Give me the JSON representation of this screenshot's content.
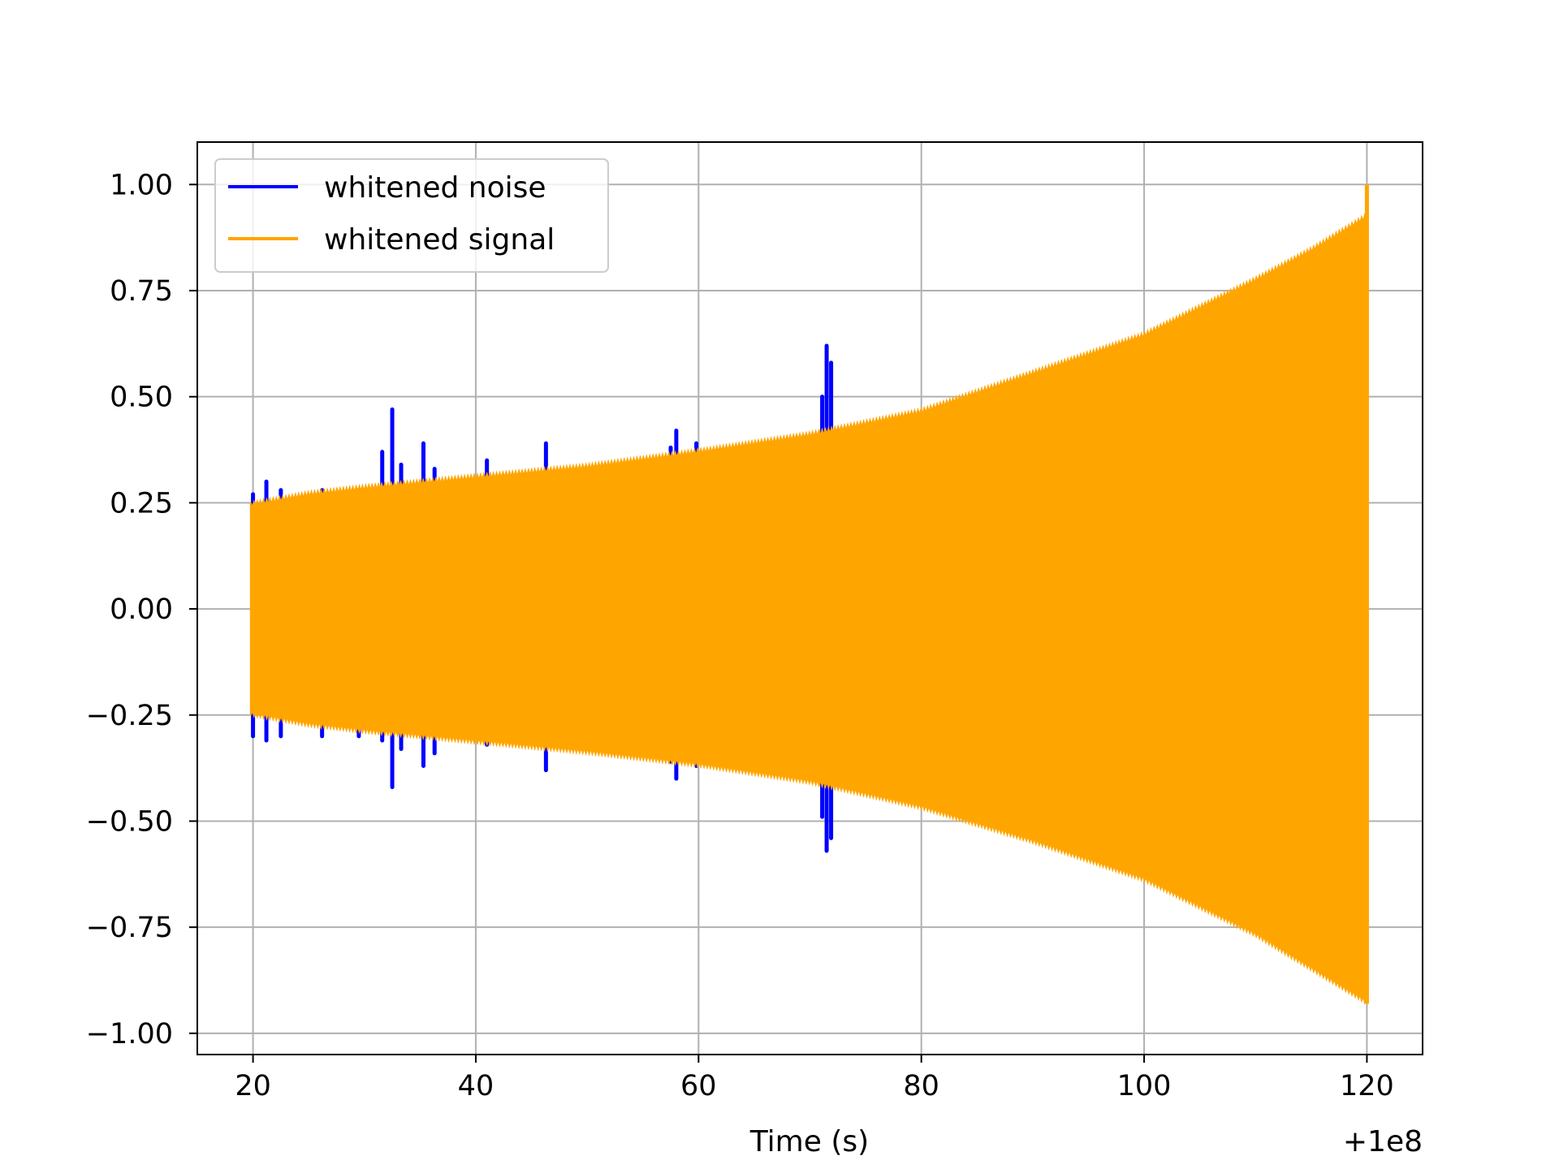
{
  "chart_data": {
    "type": "line",
    "xlabel": "Time (s)",
    "ylabel": "",
    "x_offset_label": "+1e8",
    "xlim": [
      15,
      125
    ],
    "ylim": [
      -1.05,
      1.1
    ],
    "xticks": [
      20,
      40,
      60,
      80,
      100,
      120
    ],
    "xtick_labels": [
      "20",
      "40",
      "60",
      "80",
      "100",
      "120"
    ],
    "yticks": [
      1.0,
      0.75,
      0.5,
      0.25,
      0.0,
      -0.25,
      -0.5,
      -0.75,
      -1.0
    ],
    "ytick_labels": [
      "1.00",
      "0.75",
      "0.50",
      "0.25",
      "0.00",
      "−0.25",
      "−0.50",
      "−0.75",
      "−1.00"
    ],
    "grid": true,
    "legend": "upper-left",
    "series": [
      {
        "name": "whitened noise",
        "color": "#0000ff",
        "spikes": [
          {
            "x": 20.0,
            "upper": 0.27,
            "lower": -0.3
          },
          {
            "x": 21.2,
            "upper": 0.3,
            "lower": -0.31
          },
          {
            "x": 22.5,
            "upper": 0.28,
            "lower": -0.3
          },
          {
            "x": 26.2,
            "upper": 0.28,
            "lower": -0.3
          },
          {
            "x": 29.5,
            "upper": 0.28,
            "lower": -0.3
          },
          {
            "x": 31.6,
            "upper": 0.37,
            "lower": -0.31
          },
          {
            "x": 32.5,
            "upper": 0.47,
            "lower": -0.42
          },
          {
            "x": 33.3,
            "upper": 0.34,
            "lower": -0.33
          },
          {
            "x": 35.3,
            "upper": 0.39,
            "lower": -0.37
          },
          {
            "x": 36.3,
            "upper": 0.33,
            "lower": -0.34
          },
          {
            "x": 41.0,
            "upper": 0.35,
            "lower": -0.32
          },
          {
            "x": 46.3,
            "upper": 0.39,
            "lower": -0.38
          },
          {
            "x": 57.5,
            "upper": 0.38,
            "lower": -0.36
          },
          {
            "x": 58.0,
            "upper": 0.42,
            "lower": -0.4
          },
          {
            "x": 59.8,
            "upper": 0.39,
            "lower": -0.37
          },
          {
            "x": 71.1,
            "upper": 0.5,
            "lower": -0.49
          },
          {
            "x": 71.5,
            "upper": 0.62,
            "lower": -0.57
          },
          {
            "x": 71.9,
            "upper": 0.58,
            "lower": -0.54
          }
        ]
      },
      {
        "name": "whitened signal",
        "color": "#ffa500",
        "x_range": [
          19.8,
          120.1
        ],
        "envelope_upper": [
          [
            19.8,
            0.25
          ],
          [
            25,
            0.275
          ],
          [
            30,
            0.29
          ],
          [
            40,
            0.315
          ],
          [
            50,
            0.34
          ],
          [
            60,
            0.375
          ],
          [
            70,
            0.415
          ],
          [
            80,
            0.47
          ],
          [
            90,
            0.56
          ],
          [
            100,
            0.65
          ],
          [
            110,
            0.78
          ],
          [
            115,
            0.85
          ],
          [
            120,
            0.93
          ]
        ],
        "envelope_lower": [
          [
            19.8,
            -0.25
          ],
          [
            25,
            -0.275
          ],
          [
            30,
            -0.29
          ],
          [
            40,
            -0.315
          ],
          [
            50,
            -0.34
          ],
          [
            60,
            -0.37
          ],
          [
            70,
            -0.41
          ],
          [
            80,
            -0.47
          ],
          [
            90,
            -0.55
          ],
          [
            100,
            -0.64
          ],
          [
            110,
            -0.77
          ],
          [
            115,
            -0.85
          ],
          [
            120,
            -0.93
          ]
        ],
        "peak": {
          "x": 120.0,
          "y": 1.0
        }
      }
    ]
  }
}
